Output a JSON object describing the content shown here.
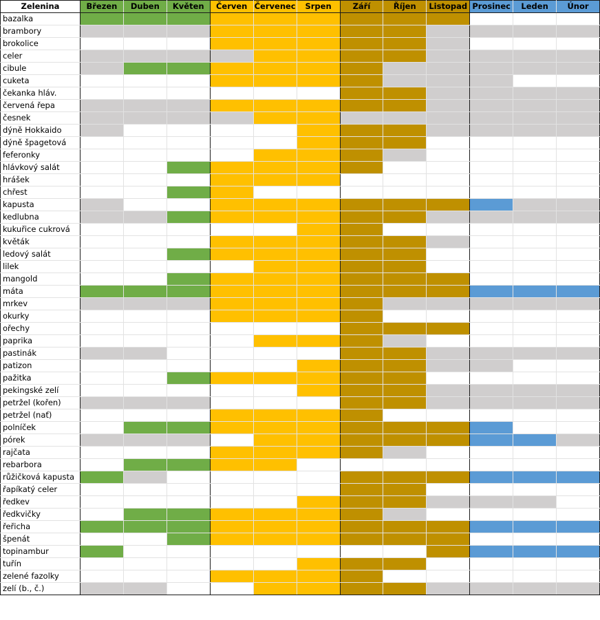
{
  "header": {
    "veg_label": "Zelenina",
    "months": [
      "Březen",
      "Duben",
      "Květen",
      "Červen",
      "Červenec",
      "Srpen",
      "Září",
      "Říjen",
      "Listopad",
      "Prosinec",
      "Leden",
      "Únor"
    ]
  },
  "colors": {
    "spring": "#70ad47",
    "summer": "#ffc000",
    "autumn": "#bf9000",
    "winter": "#5b9bd5",
    "stored": "#d0cece",
    "empty": "#ffffff"
  },
  "season_headers": [
    "spring",
    "spring",
    "spring",
    "summer",
    "summer",
    "summer",
    "autumn",
    "autumn",
    "autumn",
    "winter",
    "winter",
    "winter"
  ],
  "legend_codes": "C = season colour (harvest), G = grey (storage), . = none",
  "rows": [
    {
      "name": "bazalka",
      "cells": "CCCCCCCCC..."
    },
    {
      "name": "brambory",
      "cells": "GGGCCCCCGGGG"
    },
    {
      "name": "brokolice",
      "cells": "...CCCCCG..."
    },
    {
      "name": "celer",
      "cells": "GGGGCCCCGGGG"
    },
    {
      "name": "cibule",
      "cells": "GCCCCCCGGGGG"
    },
    {
      "name": "cuketa",
      "cells": "...CCCCGGG.."
    },
    {
      "name": "čekanka hláv.",
      "cells": "......CCGGGG"
    },
    {
      "name": "červená řepa",
      "cells": "GGGCCCCCGGGG"
    },
    {
      "name": "česnek",
      "cells": "GGGGCCGGGGGG"
    },
    {
      "name": "dýně Hokkaido",
      "cells": "G....CCCGGGG"
    },
    {
      "name": "dýně špagetová",
      "cells": ".....CCC...."
    },
    {
      "name": "feferonky",
      "cells": "....CCCG...."
    },
    {
      "name": "hlávkový salát",
      "cells": "..CCCCC....."
    },
    {
      "name": "hrášek",
      "cells": "...CCC......"
    },
    {
      "name": "chřest",
      "cells": "..CC........"
    },
    {
      "name": "kapusta",
      "cells": "G..CCCCCCCGG"
    },
    {
      "name": "kedlubna",
      "cells": "GGCCCCCCGGGG"
    },
    {
      "name": "kukuřice cukrová",
      "cells": ".....CC....."
    },
    {
      "name": "květák",
      "cells": "...CCCCCG..."
    },
    {
      "name": "ledový salát",
      "cells": "..CCCCCC...."
    },
    {
      "name": "lilek",
      "cells": "....CCCC...."
    },
    {
      "name": "mangold",
      "cells": "..CCCCCCC..."
    },
    {
      "name": "máta",
      "cells": "CCCCCCCCCCCC"
    },
    {
      "name": "mrkev",
      "cells": "GGGCCCCGGGGG"
    },
    {
      "name": "okurky",
      "cells": "...CCCC....."
    },
    {
      "name": "ořechy",
      "cells": "......CCC..."
    },
    {
      "name": "paprika",
      "cells": "....CCCG...."
    },
    {
      "name": "pastinák",
      "cells": "GG....CCGGGG"
    },
    {
      "name": "patizon",
      "cells": ".....CCCGG.."
    },
    {
      "name": "pažitka",
      "cells": "..CCCCCC...."
    },
    {
      "name": "pekingské zelí",
      "cells": ".....CCCGGGG"
    },
    {
      "name": "petržel (kořen)",
      "cells": "GGG...CCGGGG"
    },
    {
      "name": "petržel (nať)",
      "cells": "...CCCC....."
    },
    {
      "name": "polníček",
      "cells": ".CCCCCCCCC.."
    },
    {
      "name": "pórek",
      "cells": "GGG.CCCCCCCG"
    },
    {
      "name": "rajčata",
      "cells": "...CCCCG...."
    },
    {
      "name": "rebarbora",
      "cells": ".CCCC......."
    },
    {
      "name": "růžičková kapusta",
      "cells": "CG....CCCCCC"
    },
    {
      "name": "řapíkatý celer",
      "cells": "......CC...."
    },
    {
      "name": "ředkev",
      "cells": ".....CCCGGG."
    },
    {
      "name": "ředkvičky",
      "cells": ".CCCCCCG...."
    },
    {
      "name": "řeřicha",
      "cells": "CCCCCCCCCCCC"
    },
    {
      "name": "špenát",
      "cells": "..CCCCCCC..."
    },
    {
      "name": "topinambur",
      "cells": "C.......CCCC"
    },
    {
      "name": "tuřín",
      "cells": ".....CCC...."
    },
    {
      "name": "zelené fazolky",
      "cells": "...CCCC....."
    },
    {
      "name": "zelí (b., č.)",
      "cells": "GG..CCCCGGGG"
    }
  ]
}
